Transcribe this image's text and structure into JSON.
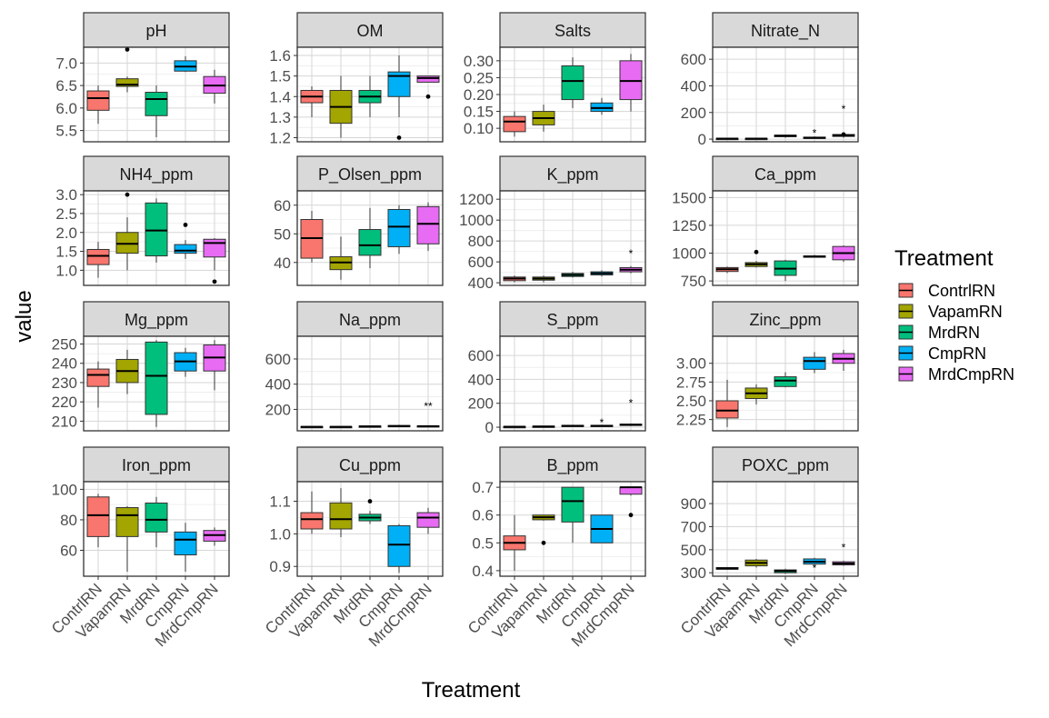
{
  "colors": {
    "ContrlRN": "#F8766D",
    "VapamRN": "#A3A500",
    "MrdRN": "#00BF7D",
    "CmpRN": "#00B0F6",
    "MrdCmpRN": "#E76BF3"
  },
  "treatments": [
    "ContrlRN",
    "VapamRN",
    "MrdRN",
    "CmpRN",
    "MrdCmpRN"
  ],
  "axes": {
    "xlabel": "Treatment",
    "ylabel": "value"
  },
  "legend": {
    "title": "Treatment",
    "placement": "right"
  },
  "chart_data": {
    "type": "boxplot",
    "facets": [
      {
        "title": "pH",
        "ylim": [
          5.25,
          7.35
        ],
        "yticks": [
          5.5,
          6.0,
          6.5,
          7.0
        ],
        "tick_labels": [
          "5.5",
          "6.0",
          "6.5",
          "7.0"
        ],
        "boxes": [
          {
            "wl": 5.65,
            "q1": 5.95,
            "med": 6.22,
            "q3": 6.38,
            "wh": 6.5,
            "out": []
          },
          {
            "wl": 6.35,
            "q1": 6.48,
            "med": 6.52,
            "q3": 6.65,
            "wh": 6.7,
            "out": [
              7.3
            ]
          },
          {
            "wl": 5.35,
            "q1": 5.83,
            "med": 6.2,
            "q3": 6.35,
            "wh": 6.5,
            "out": []
          },
          {
            "wl": 6.8,
            "q1": 6.82,
            "med": 6.92,
            "q3": 7.05,
            "wh": 7.15,
            "out": []
          },
          {
            "wl": 6.1,
            "q1": 6.33,
            "med": 6.5,
            "q3": 6.7,
            "wh": 6.85,
            "out": []
          }
        ]
      },
      {
        "title": "OM",
        "ylim": [
          1.18,
          1.64
        ],
        "yticks": [
          1.2,
          1.3,
          1.4,
          1.5,
          1.6
        ],
        "tick_labels": [
          "1.2",
          "1.3",
          "1.4",
          "1.5",
          "1.6"
        ],
        "boxes": [
          {
            "wl": 1.3,
            "q1": 1.37,
            "med": 1.4,
            "q3": 1.43,
            "wh": 1.45,
            "out": []
          },
          {
            "wl": 1.2,
            "q1": 1.27,
            "med": 1.35,
            "q3": 1.43,
            "wh": 1.5,
            "out": []
          },
          {
            "wl": 1.3,
            "q1": 1.37,
            "med": 1.4,
            "q3": 1.43,
            "wh": 1.5,
            "out": []
          },
          {
            "wl": 1.3,
            "q1": 1.4,
            "med": 1.5,
            "q3": 1.52,
            "wh": 1.6,
            "out": [
              1.2
            ]
          },
          {
            "wl": 1.47,
            "q1": 1.47,
            "med": 1.49,
            "q3": 1.5,
            "wh": 1.5,
            "out": [
              1.4
            ]
          }
        ]
      },
      {
        "title": "Salts",
        "ylim": [
          0.06,
          0.34
        ],
        "yticks": [
          0.1,
          0.15,
          0.2,
          0.25,
          0.3
        ],
        "tick_labels": [
          "0.10",
          "0.15",
          "0.20",
          "0.25",
          "0.30"
        ],
        "boxes": [
          {
            "wl": 0.075,
            "q1": 0.09,
            "med": 0.12,
            "q3": 0.135,
            "wh": 0.15,
            "out": []
          },
          {
            "wl": 0.09,
            "q1": 0.11,
            "med": 0.13,
            "q3": 0.15,
            "wh": 0.17,
            "out": []
          },
          {
            "wl": 0.16,
            "q1": 0.185,
            "med": 0.24,
            "q3": 0.285,
            "wh": 0.31,
            "out": []
          },
          {
            "wl": 0.14,
            "q1": 0.15,
            "med": 0.16,
            "q3": 0.175,
            "wh": 0.19,
            "out": []
          },
          {
            "wl": 0.15,
            "q1": 0.185,
            "med": 0.24,
            "q3": 0.3,
            "wh": 0.32,
            "out": []
          }
        ]
      },
      {
        "title": "Nitrate_N",
        "ylim": [
          -20,
          690
        ],
        "yticks": [
          0,
          200,
          400,
          600
        ],
        "tick_labels": [
          "0",
          "200",
          "400",
          "600"
        ],
        "boxes": [
          {
            "wl": 0,
            "q1": 2,
            "med": 4,
            "q3": 6,
            "wh": 8,
            "out": []
          },
          {
            "wl": 0,
            "q1": 2,
            "med": 4,
            "q3": 6,
            "wh": 8,
            "out": []
          },
          {
            "wl": 10,
            "q1": 18,
            "med": 25,
            "q3": 30,
            "wh": 35,
            "out": []
          },
          {
            "wl": 2,
            "q1": 5,
            "med": 10,
            "q3": 15,
            "wh": 20,
            "out": []
          },
          {
            "wl": 10,
            "q1": 20,
            "med": 28,
            "q3": 35,
            "wh": 45,
            "out": [
              35
            ]
          }
        ],
        "annotations": [
          {
            "i": 3,
            "y": 45,
            "text": "*"
          },
          {
            "i": 4,
            "y": 225,
            "text": "*"
          }
        ]
      },
      {
        "title": "NH4_ppm",
        "ylim": [
          0.6,
          3.1
        ],
        "yticks": [
          1.0,
          1.5,
          2.0,
          2.5,
          3.0
        ],
        "tick_labels": [
          "1.0",
          "1.5",
          "2.0",
          "2.5",
          "3.0"
        ],
        "boxes": [
          {
            "wl": 0.8,
            "q1": 1.15,
            "med": 1.38,
            "q3": 1.55,
            "wh": 1.75,
            "out": []
          },
          {
            "wl": 1.0,
            "q1": 1.45,
            "med": 1.7,
            "q3": 2.0,
            "wh": 2.4,
            "out": [
              3.0
            ]
          },
          {
            "wl": 1.2,
            "q1": 1.38,
            "med": 2.05,
            "q3": 2.78,
            "wh": 2.9,
            "out": []
          },
          {
            "wl": 1.3,
            "q1": 1.45,
            "med": 1.52,
            "q3": 1.68,
            "wh": 1.8,
            "out": [
              2.2
            ]
          },
          {
            "wl": 1.0,
            "q1": 1.35,
            "med": 1.72,
            "q3": 1.82,
            "wh": 1.85,
            "out": [
              0.7
            ]
          }
        ]
      },
      {
        "title": "P_Olsen_ppm",
        "ylim": [
          32,
          65
        ],
        "yticks": [
          40,
          50,
          60
        ],
        "tick_labels": [
          "40",
          "50",
          "60"
        ],
        "boxes": [
          {
            "wl": 40,
            "q1": 41.5,
            "med": 48.5,
            "q3": 55,
            "wh": 58,
            "out": []
          },
          {
            "wl": 34,
            "q1": 37.5,
            "med": 40,
            "q3": 42,
            "wh": 49,
            "out": []
          },
          {
            "wl": 38,
            "q1": 42.5,
            "med": 46,
            "q3": 51.5,
            "wh": 59,
            "out": []
          },
          {
            "wl": 43,
            "q1": 45.5,
            "med": 52.5,
            "q3": 58.5,
            "wh": 60,
            "out": []
          },
          {
            "wl": 44,
            "q1": 46.5,
            "med": 53.5,
            "q3": 59.5,
            "wh": 61,
            "out": []
          }
        ]
      },
      {
        "title": "K_ppm",
        "ylim": [
          375,
          1280
        ],
        "yticks": [
          400,
          600,
          800,
          1000,
          1200
        ],
        "tick_labels": [
          "400",
          "600",
          "800",
          "1000",
          "1200"
        ],
        "boxes": [
          {
            "wl": 405,
            "q1": 420,
            "med": 440,
            "q3": 455,
            "wh": 470,
            "out": []
          },
          {
            "wl": 405,
            "q1": 425,
            "med": 440,
            "q3": 455,
            "wh": 470,
            "out": []
          },
          {
            "wl": 450,
            "q1": 460,
            "med": 475,
            "q3": 490,
            "wh": 505,
            "out": []
          },
          {
            "wl": 460,
            "q1": 475,
            "med": 490,
            "q3": 505,
            "wh": 520,
            "out": []
          },
          {
            "wl": 490,
            "q1": 505,
            "med": 525,
            "q3": 545,
            "wh": 560,
            "out": []
          }
        ],
        "annotations": [
          {
            "i": 4,
            "y": 680,
            "text": "*"
          }
        ]
      },
      {
        "title": "Ca_ppm",
        "ylim": [
          710,
          1560
        ],
        "yticks": [
          750,
          1000,
          1250,
          1500
        ],
        "tick_labels": [
          "750",
          "1000",
          "1250",
          "1500"
        ],
        "boxes": [
          {
            "wl": 820,
            "q1": 835,
            "med": 855,
            "q3": 870,
            "wh": 880,
            "out": []
          },
          {
            "wl": 870,
            "q1": 880,
            "med": 900,
            "q3": 915,
            "wh": 930,
            "out": [
              1010
            ]
          },
          {
            "wl": 750,
            "q1": 800,
            "med": 860,
            "q3": 930,
            "wh": 940,
            "out": []
          },
          {
            "wl": 960,
            "q1": 965,
            "med": 970,
            "q3": 975,
            "wh": 985,
            "out": []
          },
          {
            "wl": 920,
            "q1": 940,
            "med": 1000,
            "q3": 1060,
            "wh": 1070,
            "out": []
          }
        ]
      },
      {
        "title": "Mg_ppm",
        "ylim": [
          205,
          254
        ],
        "yticks": [
          210,
          220,
          230,
          240,
          250
        ],
        "tick_labels": [
          "210",
          "220",
          "230",
          "240",
          "250"
        ],
        "boxes": [
          {
            "wl": 217,
            "q1": 228,
            "med": 234,
            "q3": 237,
            "wh": 241,
            "out": []
          },
          {
            "wl": 224,
            "q1": 230,
            "med": 236,
            "q3": 242,
            "wh": 247,
            "out": []
          },
          {
            "wl": 207,
            "q1": 213.5,
            "med": 233.5,
            "q3": 251,
            "wh": 252,
            "out": []
          },
          {
            "wl": 233,
            "q1": 236,
            "med": 241,
            "q3": 245.5,
            "wh": 248,
            "out": []
          },
          {
            "wl": 226,
            "q1": 236,
            "med": 243,
            "q3": 249.5,
            "wh": 252,
            "out": []
          }
        ]
      },
      {
        "title": "Na_ppm",
        "ylim": [
          30,
          780
        ],
        "yticks": [
          200,
          400,
          600
        ],
        "tick_labels": [
          "200",
          "400",
          "600"
        ],
        "boxes": [
          {
            "wl": 58,
            "q1": 60,
            "med": 62,
            "q3": 64,
            "wh": 66,
            "out": []
          },
          {
            "wl": 58,
            "q1": 60,
            "med": 62,
            "q3": 64,
            "wh": 66,
            "out": []
          },
          {
            "wl": 60,
            "q1": 63,
            "med": 65,
            "q3": 68,
            "wh": 72,
            "out": []
          },
          {
            "wl": 62,
            "q1": 65,
            "med": 68,
            "q3": 72,
            "wh": 78,
            "out": []
          },
          {
            "wl": 62,
            "q1": 64,
            "med": 66,
            "q3": 70,
            "wh": 74,
            "out": []
          }
        ],
        "annotations": [
          {
            "i": 4,
            "y": 225,
            "text": "**"
          }
        ]
      },
      {
        "title": "S_ppm",
        "ylim": [
          -30,
          760
        ],
        "yticks": [
          0,
          200,
          400,
          600
        ],
        "tick_labels": [
          "0",
          "200",
          "400",
          "600"
        ],
        "boxes": [
          {
            "wl": 0,
            "q1": 2,
            "med": 4,
            "q3": 6,
            "wh": 8,
            "out": []
          },
          {
            "wl": 2,
            "q1": 4,
            "med": 6,
            "q3": 9,
            "wh": 12,
            "out": []
          },
          {
            "wl": 6,
            "q1": 9,
            "med": 12,
            "q3": 16,
            "wh": 20,
            "out": []
          },
          {
            "wl": 6,
            "q1": 9,
            "med": 12,
            "q3": 16,
            "wh": 20,
            "out": []
          },
          {
            "wl": 10,
            "q1": 15,
            "med": 20,
            "q3": 26,
            "wh": 32,
            "out": []
          }
        ],
        "annotations": [
          {
            "i": 3,
            "y": 40,
            "text": "*"
          },
          {
            "i": 4,
            "y": 200,
            "text": "*"
          }
        ]
      },
      {
        "title": "Zinc_ppm",
        "ylim": [
          2.1,
          3.36
        ],
        "yticks": [
          2.25,
          2.5,
          2.75,
          3.0
        ],
        "tick_labels": [
          "2.25",
          "2.50",
          "2.75",
          "3.00"
        ],
        "boxes": [
          {
            "wl": 2.15,
            "q1": 2.27,
            "med": 2.37,
            "q3": 2.5,
            "wh": 2.78,
            "out": []
          },
          {
            "wl": 2.45,
            "q1": 2.53,
            "med": 2.6,
            "q3": 2.67,
            "wh": 2.72,
            "out": []
          },
          {
            "wl": 2.68,
            "q1": 2.69,
            "med": 2.77,
            "q3": 2.82,
            "wh": 2.88,
            "out": []
          },
          {
            "wl": 2.87,
            "q1": 2.92,
            "med": 3.03,
            "q3": 3.08,
            "wh": 3.15,
            "out": []
          },
          {
            "wl": 2.9,
            "q1": 3.0,
            "med": 3.06,
            "q3": 3.13,
            "wh": 3.18,
            "out": []
          }
        ]
      },
      {
        "title": "Iron_ppm",
        "ylim": [
          43,
          105
        ],
        "yticks": [
          60,
          80,
          100
        ],
        "tick_labels": [
          "60",
          "80",
          "100"
        ],
        "boxes": [
          {
            "wl": 62,
            "q1": 69,
            "med": 83,
            "q3": 95,
            "wh": 97,
            "out": []
          },
          {
            "wl": 46,
            "q1": 69,
            "med": 83,
            "q3": 88,
            "wh": 89,
            "out": []
          },
          {
            "wl": 62,
            "q1": 72,
            "med": 80,
            "q3": 91,
            "wh": 95,
            "out": []
          },
          {
            "wl": 46,
            "q1": 57,
            "med": 67,
            "q3": 72,
            "wh": 78,
            "out": []
          },
          {
            "wl": 63,
            "q1": 66,
            "med": 70,
            "q3": 73,
            "wh": 75,
            "out": []
          }
        ]
      },
      {
        "title": "Cu_ppm",
        "ylim": [
          0.87,
          1.16
        ],
        "yticks": [
          0.9,
          1.0,
          1.1
        ],
        "tick_labels": [
          "0.9",
          "1.0",
          "1.1"
        ],
        "boxes": [
          {
            "wl": 1.0,
            "q1": 1.015,
            "med": 1.045,
            "q3": 1.065,
            "wh": 1.13,
            "out": []
          },
          {
            "wl": 0.99,
            "q1": 1.015,
            "med": 1.045,
            "q3": 1.095,
            "wh": 1.14,
            "out": []
          },
          {
            "wl": 1.03,
            "q1": 1.04,
            "med": 1.05,
            "q3": 1.06,
            "wh": 1.07,
            "out": [
              1.1
            ]
          },
          {
            "wl": 0.88,
            "q1": 0.9,
            "med": 0.967,
            "q3": 1.025,
            "wh": 1.03,
            "out": []
          },
          {
            "wl": 1.0,
            "q1": 1.02,
            "med": 1.05,
            "q3": 1.065,
            "wh": 1.08,
            "out": []
          }
        ]
      },
      {
        "title": "B_ppm",
        "ylim": [
          0.38,
          0.72
        ],
        "yticks": [
          0.4,
          0.5,
          0.6,
          0.7
        ],
        "tick_labels": [
          "0.4",
          "0.5",
          "0.6",
          "0.7"
        ],
        "boxes": [
          {
            "wl": 0.4,
            "q1": 0.475,
            "med": 0.5,
            "q3": 0.525,
            "wh": 0.6,
            "out": []
          },
          {
            "wl": 0.58,
            "q1": 0.583,
            "med": 0.592,
            "q3": 0.6,
            "wh": 0.6,
            "out": [
              0.5
            ]
          },
          {
            "wl": 0.5,
            "q1": 0.575,
            "med": 0.65,
            "q3": 0.7,
            "wh": 0.7,
            "out": []
          },
          {
            "wl": 0.5,
            "q1": 0.5,
            "med": 0.55,
            "q3": 0.6,
            "wh": 0.6,
            "out": []
          },
          {
            "wl": 0.67,
            "q1": 0.675,
            "med": 0.7,
            "q3": 0.7,
            "wh": 0.7,
            "out": [
              0.6
            ]
          }
        ]
      },
      {
        "title": "POXC_ppm",
        "ylim": [
          270,
          1090
        ],
        "yticks": [
          300,
          500,
          700,
          900
        ],
        "tick_labels": [
          "300",
          "500",
          "700",
          "900"
        ],
        "boxes": [
          {
            "wl": 325,
            "q1": 330,
            "med": 338,
            "q3": 345,
            "wh": 350,
            "out": []
          },
          {
            "wl": 345,
            "q1": 360,
            "med": 385,
            "q3": 410,
            "wh": 420,
            "out": []
          },
          {
            "wl": 290,
            "q1": 300,
            "med": 315,
            "q3": 325,
            "wh": 335,
            "out": []
          },
          {
            "wl": 370,
            "q1": 375,
            "med": 395,
            "q3": 420,
            "wh": 430,
            "out": []
          },
          {
            "wl": 360,
            "q1": 368,
            "med": 380,
            "q3": 395,
            "wh": 405,
            "out": []
          }
        ],
        "annotations": [
          {
            "i": 3,
            "y": 340,
            "text": "*"
          },
          {
            "i": 4,
            "y": 520,
            "text": "*"
          }
        ]
      }
    ]
  }
}
